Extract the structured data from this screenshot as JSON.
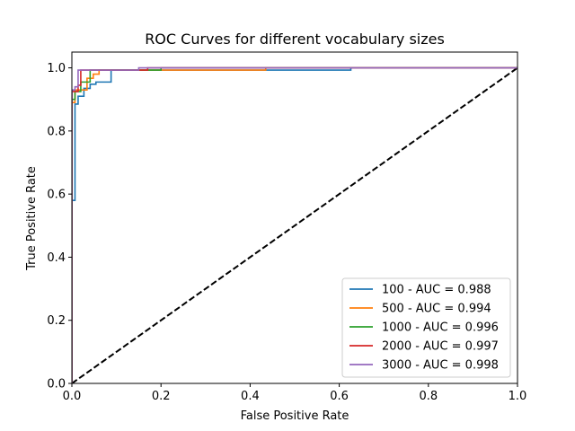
{
  "chart_data": {
    "type": "line",
    "title": "ROC Curves for different vocabulary sizes",
    "xlabel": "False Positive Rate",
    "ylabel": "True Positive Rate",
    "xlim": [
      0.0,
      1.0
    ],
    "ylim": [
      0.0,
      1.05
    ],
    "xticks": [
      "0.0",
      "0.2",
      "0.4",
      "0.6",
      "0.8",
      "1.0"
    ],
    "yticks": [
      "0.0",
      "0.2",
      "0.4",
      "0.6",
      "0.8",
      "1.0"
    ],
    "grid": false,
    "legend_position": "lower-right",
    "series": [
      {
        "name": "100 - AUC = 0.988",
        "color": "#1f77b4",
        "x": [
          0.0,
          0.0,
          0.007,
          0.007,
          0.014,
          0.014,
          0.027,
          0.027,
          0.041,
          0.041,
          0.054,
          0.054,
          0.088,
          0.088,
          0.626,
          0.626,
          1.0
        ],
        "y": [
          0.0,
          0.58,
          0.58,
          0.885,
          0.885,
          0.91,
          0.91,
          0.935,
          0.935,
          0.948,
          0.948,
          0.955,
          0.955,
          0.993,
          0.993,
          1.0,
          1.0
        ]
      },
      {
        "name": "500 - AUC = 0.994",
        "color": "#ff7f0e",
        "x": [
          0.0,
          0.0,
          0.007,
          0.007,
          0.034,
          0.034,
          0.048,
          0.048,
          0.061,
          0.061,
          0.435,
          0.435,
          1.0
        ],
        "y": [
          0.0,
          0.89,
          0.89,
          0.93,
          0.93,
          0.967,
          0.967,
          0.98,
          0.98,
          0.993,
          0.993,
          1.0,
          1.0
        ]
      },
      {
        "name": "1000 - AUC = 0.996",
        "color": "#2ca02c",
        "x": [
          0.0,
          0.0,
          0.007,
          0.007,
          0.02,
          0.02,
          0.041,
          0.041,
          0.2,
          0.2,
          1.0
        ],
        "y": [
          0.0,
          0.9,
          0.9,
          0.925,
          0.925,
          0.955,
          0.955,
          0.993,
          0.993,
          1.0,
          1.0
        ]
      },
      {
        "name": "2000 - AUC = 0.997",
        "color": "#d62728",
        "x": [
          0.0,
          0.0,
          0.014,
          0.014,
          0.02,
          0.02,
          0.17,
          0.17,
          1.0
        ],
        "y": [
          0.0,
          0.925,
          0.925,
          0.945,
          0.945,
          0.993,
          0.993,
          1.0,
          1.0
        ]
      },
      {
        "name": "3000 - AUC = 0.998",
        "color": "#9467bd",
        "x": [
          0.0,
          0.0,
          0.007,
          0.007,
          0.014,
          0.014,
          0.15,
          0.15,
          1.0
        ],
        "y": [
          0.0,
          0.93,
          0.93,
          0.94,
          0.94,
          0.993,
          0.993,
          1.0,
          1.0
        ]
      }
    ],
    "reference_line": {
      "color": "#000000",
      "style": "dashed",
      "x": [
        0.0,
        1.0
      ],
      "y": [
        0.0,
        1.0
      ]
    }
  }
}
